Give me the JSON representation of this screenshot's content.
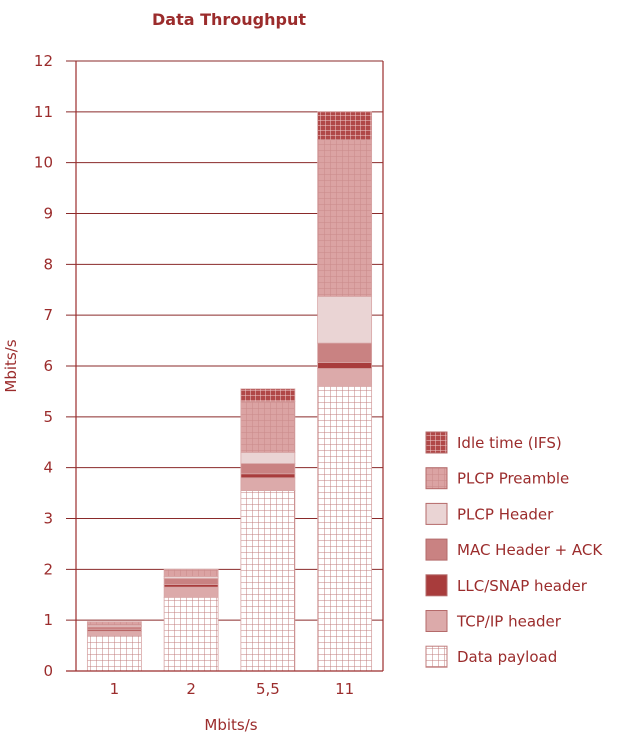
{
  "chart_data": {
    "type": "bar",
    "stacked": true,
    "title": "Data Throughput",
    "xlabel": "Mbits/s",
    "ylabel": "Mbits/s",
    "ylim": [
      0,
      12
    ],
    "yticks": [
      0,
      1,
      2,
      3,
      4,
      5,
      6,
      7,
      8,
      9,
      10,
      11,
      12
    ],
    "grid": true,
    "legend_position": "right",
    "categories": [
      "1",
      "2",
      "5,5",
      "11"
    ],
    "series": [
      {
        "name": "Data payload",
        "values": [
          0.7,
          1.45,
          3.55,
          5.6
        ],
        "color": "#ffffff",
        "pattern": "grid-light"
      },
      {
        "name": "TCP/IP header",
        "values": [
          0.08,
          0.2,
          0.25,
          0.35
        ],
        "color": "#dcaaaa",
        "pattern": "solid"
      },
      {
        "name": "LLC/SNAP header",
        "values": [
          0.03,
          0.05,
          0.08,
          0.12
        ],
        "color": "#a83c3c",
        "pattern": "solid"
      },
      {
        "name": "MAC Header + ACK",
        "values": [
          0.06,
          0.12,
          0.2,
          0.38
        ],
        "color": "#c98282",
        "pattern": "solid"
      },
      {
        "name": "PLCP Header",
        "values": [
          0.03,
          0.04,
          0.22,
          0.92
        ],
        "color": "#ead4d4",
        "pattern": "solid"
      },
      {
        "name": "PLCP Preamble",
        "values": [
          0.07,
          0.14,
          1.0,
          3.08
        ],
        "color": "#dba3a3",
        "pattern": "grid-fill"
      },
      {
        "name": "Idle time (IFS)",
        "values": [
          0.0,
          0.0,
          0.25,
          0.55
        ],
        "color": "#b04848",
        "pattern": "grid-dark"
      }
    ],
    "legend_order": [
      "Idle time (IFS)",
      "PLCP Preamble",
      "PLCP Header",
      "MAC Header + ACK",
      "LLC/SNAP header",
      "TCP/IP header",
      "Data payload"
    ],
    "colors": {
      "axis": "#9b2c2c",
      "grid": "#8a2a2a"
    }
  }
}
